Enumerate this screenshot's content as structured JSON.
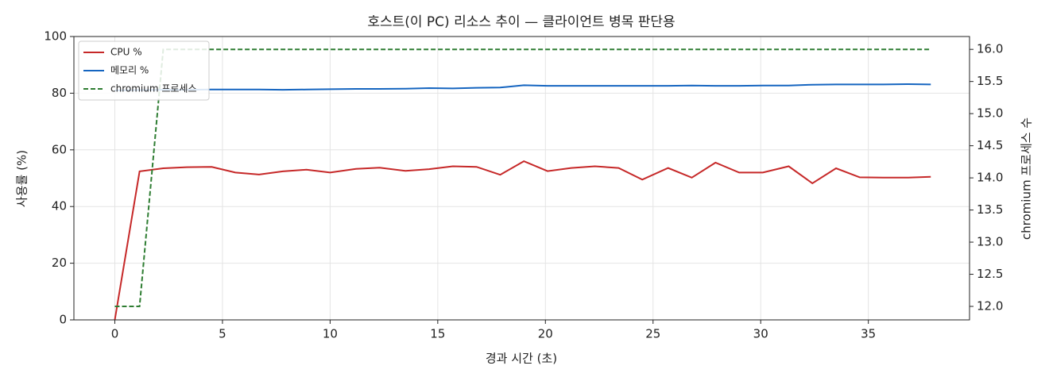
{
  "chart_data": {
    "type": "line",
    "title": "호스트(이 PC) 리소스 추이 — 클라이언트 병목 판단용",
    "xlabel": "경과 시간 (초)",
    "ylabel": "사용률 (%)",
    "y2label": "chromium 프로세스 수",
    "x": [
      0,
      1.15,
      2.25,
      3.35,
      4.5,
      5.6,
      6.7,
      7.8,
      8.9,
      10.0,
      11.2,
      12.3,
      13.5,
      14.6,
      15.7,
      16.8,
      17.9,
      19.0,
      20.1,
      21.2,
      22.3,
      23.4,
      24.5,
      25.7,
      26.8,
      27.9,
      29.0,
      30.1,
      31.3,
      32.4,
      33.5,
      34.6,
      35.7,
      36.8,
      37.9
    ],
    "series": [
      {
        "name": "CPU %",
        "color": "#c62828",
        "linestyle": "solid",
        "values": [
          0,
          52.4,
          53.5,
          53.9,
          54,
          52,
          51.3,
          52.4,
          53,
          52,
          53.3,
          53.7,
          52.6,
          53.2,
          54.2,
          54,
          51.2,
          56,
          52.5,
          53.6,
          54.2,
          53.6,
          49.5,
          53.6,
          50.2,
          55.5,
          52,
          52,
          54.2,
          48.2,
          53.5,
          50.3,
          50.2,
          50.2,
          50.5
        ]
      },
      {
        "name": "메모리 %",
        "color": "#1565c0",
        "linestyle": "solid",
        "values": [
          81,
          81.1,
          81.2,
          81.2,
          81.3,
          81.3,
          81.3,
          81.2,
          81.3,
          81.4,
          81.5,
          81.5,
          81.6,
          81.8,
          81.7,
          81.9,
          82,
          82.8,
          82.6,
          82.6,
          82.6,
          82.6,
          82.6,
          82.6,
          82.7,
          82.6,
          82.6,
          82.7,
          82.7,
          83,
          83.1,
          83.1,
          83.1,
          83.2,
          83.1
        ]
      },
      {
        "name": "chromium 프로세스",
        "color": "#2e7d32",
        "linestyle": "dashed",
        "axis": "y2",
        "values": [
          12,
          12,
          16,
          16,
          16,
          16,
          16,
          16,
          16,
          16,
          16,
          16,
          16,
          16,
          16,
          16,
          16,
          16,
          16,
          16,
          16,
          16,
          16,
          16,
          16,
          16,
          16,
          16,
          16,
          16,
          16,
          16,
          16,
          16,
          16
        ]
      }
    ],
    "xlim": [
      -1.9,
      39.7
    ],
    "xticks": [
      0,
      5,
      10,
      15,
      20,
      25,
      30,
      35
    ],
    "ylim": [
      0,
      100
    ],
    "yticks": [
      0,
      20,
      40,
      60,
      80,
      100
    ],
    "y2lim": [
      11.79,
      16.2
    ],
    "y2ticks": [
      {
        "value": 12,
        "label": "12.0"
      },
      12.5,
      {
        "value": 13,
        "label": "13.0"
      },
      13.5,
      {
        "value": 14,
        "label": "14.0"
      },
      14.5,
      {
        "value": 15,
        "label": "15.0"
      },
      15.5,
      {
        "value": 16,
        "label": "16.0"
      }
    ],
    "grid": true,
    "legend": "upper-left"
  }
}
